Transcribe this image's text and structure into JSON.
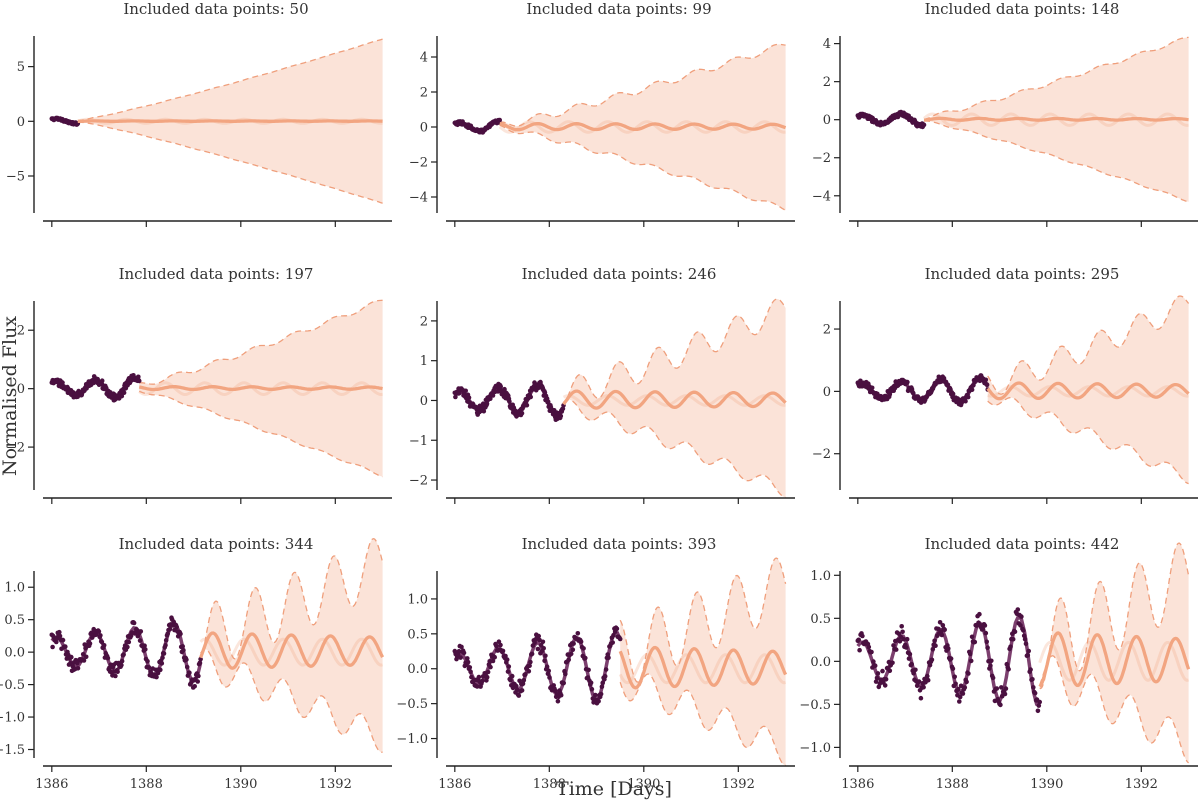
{
  "figure": {
    "xlabel": "Time [Days]",
    "ylabel": "Normalised Flux"
  },
  "colors": {
    "observed": "#4a1040",
    "observed_line": "#6e2a5e",
    "prediction": "#f2a581",
    "band_fill": "#fbe3d8",
    "band_edge": "#ef9f7c"
  },
  "chart_data": [
    {
      "type": "line",
      "title": "Included data points: 50",
      "n_points": 50,
      "x_range": [
        1386,
        1393
      ],
      "xlim": [
        1385.75,
        1393.2
      ],
      "xticks": [
        1386,
        1388,
        1390,
        1392
      ],
      "xticklabels_shown": false,
      "ylim": [
        -8.2,
        7.8
      ],
      "yticks": [
        -5,
        0,
        5
      ],
      "yticklabels": [
        "−5",
        "0",
        "5"
      ],
      "observed_end": 1386.55,
      "band_start": 0.05,
      "band_end": 7.5,
      "band_wiggle": 0.0,
      "mean_amp": 0.02,
      "faint_amp": 0.18,
      "series": [
        {
          "name": "observed data",
          "style": "points"
        },
        {
          "name": "mean prediction",
          "style": "line"
        },
        {
          "name": "sample prediction",
          "style": "faint line"
        },
        {
          "name": "uncertainty band",
          "style": "filled area"
        }
      ]
    },
    {
      "type": "line",
      "title": "Included data points: 99",
      "n_points": 99,
      "x_range": [
        1386,
        1393
      ],
      "xlim": [
        1385.75,
        1393.2
      ],
      "xticks": [
        1386,
        1388,
        1390,
        1392
      ],
      "xticklabels_shown": false,
      "ylim": [
        -4.8,
        5.2
      ],
      "yticks": [
        -4,
        -2,
        0,
        2,
        4
      ],
      "yticklabels": [
        "−4",
        "−2",
        "0",
        "2",
        "4"
      ],
      "observed_end": 1386.95,
      "band_start": 0.05,
      "band_end": 4.7,
      "band_wiggle": 0.05,
      "mean_amp": 0.18,
      "faint_amp": 0.3,
      "series": [
        {
          "name": "observed data",
          "style": "points"
        },
        {
          "name": "mean prediction",
          "style": "line"
        },
        {
          "name": "sample prediction",
          "style": "faint line"
        },
        {
          "name": "uncertainty band",
          "style": "filled area"
        }
      ]
    },
    {
      "type": "line",
      "title": "Included data points: 148",
      "n_points": 148,
      "x_range": [
        1386,
        1393
      ],
      "xlim": [
        1385.75,
        1393.2
      ],
      "xticks": [
        1386,
        1388,
        1390,
        1392
      ],
      "xticklabels_shown": false,
      "ylim": [
        -4.8,
        4.4
      ],
      "yticks": [
        -4,
        -2,
        0,
        2,
        4
      ],
      "yticklabels": [
        "−4",
        "−2",
        "0",
        "2",
        "4"
      ],
      "observed_end": 1387.4,
      "band_start": 0.1,
      "band_end": 4.3,
      "band_wiggle": 0.06,
      "mean_amp": 0.05,
      "faint_amp": 0.3,
      "series": [
        {
          "name": "observed data",
          "style": "points"
        },
        {
          "name": "mean prediction",
          "style": "line"
        },
        {
          "name": "sample prediction",
          "style": "faint line"
        },
        {
          "name": "uncertainty band",
          "style": "filled area"
        }
      ]
    },
    {
      "type": "line",
      "title": "Included data points: 197",
      "n_points": 197,
      "x_range": [
        1386,
        1393
      ],
      "xlim": [
        1385.75,
        1393.2
      ],
      "xticks": [
        1386,
        1388,
        1390,
        1392
      ],
      "xticklabels_shown": false,
      "ylim": [
        -3.4,
        3.0
      ],
      "yticks": [
        -2,
        0,
        2
      ],
      "yticklabels": [
        "−2",
        "0",
        "2"
      ],
      "observed_end": 1387.85,
      "band_start": 0.1,
      "band_end": 3.0,
      "band_wiggle": 0.05,
      "mean_amp": 0.05,
      "faint_amp": 0.2,
      "series": [
        {
          "name": "observed data",
          "style": "points"
        },
        {
          "name": "mean prediction",
          "style": "line"
        },
        {
          "name": "sample prediction",
          "style": "faint line"
        },
        {
          "name": "uncertainty band",
          "style": "filled area"
        }
      ]
    },
    {
      "type": "line",
      "title": "Included data points: 246",
      "n_points": 246,
      "x_range": [
        1386,
        1393
      ],
      "xlim": [
        1385.75,
        1393.2
      ],
      "xticks": [
        1386,
        1388,
        1390,
        1392
      ],
      "xticklabels_shown": false,
      "ylim": [
        -2.2,
        2.5
      ],
      "yticks": [
        -2,
        -1,
        0,
        1,
        2
      ],
      "yticklabels": [
        "−2",
        "−1",
        "0",
        "1",
        "2"
      ],
      "observed_end": 1388.3,
      "band_start": 0.15,
      "band_end": 2.3,
      "band_wiggle": 0.2,
      "mean_amp": 0.22,
      "faint_amp": 0.12,
      "series": [
        {
          "name": "observed data",
          "style": "points"
        },
        {
          "name": "mean prediction",
          "style": "line"
        },
        {
          "name": "sample prediction",
          "style": "faint line"
        },
        {
          "name": "uncertainty band",
          "style": "filled area"
        }
      ]
    },
    {
      "type": "line",
      "title": "Included data points: 295",
      "n_points": 295,
      "x_range": [
        1386,
        1393
      ],
      "xlim": [
        1385.75,
        1393.2
      ],
      "xticks": [
        1386,
        1388,
        1390,
        1392
      ],
      "xticklabels_shown": false,
      "ylim": [
        -3.1,
        2.9
      ],
      "yticks": [
        -2,
        0,
        2
      ],
      "yticklabels": [
        "−2",
        "0",
        "2"
      ],
      "observed_end": 1388.75,
      "band_start": 0.2,
      "band_end": 2.8,
      "band_wiggle": 0.22,
      "mean_amp": 0.26,
      "faint_amp": 0.15,
      "series": [
        {
          "name": "observed data",
          "style": "points"
        },
        {
          "name": "mean prediction",
          "style": "line"
        },
        {
          "name": "sample prediction",
          "style": "faint line"
        },
        {
          "name": "uncertainty band",
          "style": "filled area"
        }
      ]
    },
    {
      "type": "line",
      "title": "Included data points: 344",
      "n_points": 344,
      "x_range": [
        1386,
        1393
      ],
      "xlim": [
        1385.75,
        1393.2
      ],
      "xticks": [
        1386,
        1388,
        1390,
        1392
      ],
      "xticklabels": [
        "1386",
        "1388",
        "1390",
        "1392"
      ],
      "xticklabels_shown": true,
      "ylim": [
        -1.6,
        1.25
      ],
      "yticks": [
        -1.5,
        -1.0,
        -0.5,
        0.0,
        0.5,
        1.0
      ],
      "yticklabels": [
        "−1.5",
        "−1.0",
        "−0.5",
        "0.0",
        "0.5",
        "1.0"
      ],
      "observed_end": 1389.15,
      "band_start": 0.2,
      "band_end": 1.35,
      "band_wiggle": 0.28,
      "mean_amp": 0.28,
      "faint_amp": 0.2,
      "series": [
        {
          "name": "observed data",
          "style": "points"
        },
        {
          "name": "mean prediction",
          "style": "line"
        },
        {
          "name": "sample prediction",
          "style": "faint line"
        },
        {
          "name": "uncertainty band",
          "style": "filled area"
        }
      ]
    },
    {
      "type": "line",
      "title": "Included data points: 393",
      "n_points": 393,
      "x_range": [
        1386,
        1393
      ],
      "xlim": [
        1385.75,
        1393.2
      ],
      "xticks": [
        1386,
        1388,
        1390,
        1392
      ],
      "xticklabels": [
        "1386",
        "1388",
        "1390",
        "1392"
      ],
      "xticklabels_shown": true,
      "ylim": [
        -1.25,
        1.4
      ],
      "yticks": [
        -1.0,
        -0.5,
        0.0,
        0.5,
        1.0
      ],
      "yticklabels": [
        "−1.0",
        "−0.5",
        "0.0",
        "0.5",
        "1.0"
      ],
      "observed_end": 1389.5,
      "band_start": 0.2,
      "band_end": 1.2,
      "band_wiggle": 0.25,
      "mean_amp": 0.3,
      "faint_amp": 0.2,
      "series": [
        {
          "name": "observed data",
          "style": "points"
        },
        {
          "name": "mean prediction",
          "style": "line"
        },
        {
          "name": "sample prediction",
          "style": "faint line"
        },
        {
          "name": "uncertainty band",
          "style": "filled area"
        }
      ]
    },
    {
      "type": "line",
      "title": "Included data points: 442",
      "n_points": 442,
      "x_range": [
        1386,
        1393
      ],
      "xlim": [
        1385.75,
        1393.2
      ],
      "xticks": [
        1386,
        1388,
        1390,
        1392
      ],
      "xticklabels": [
        "1386",
        "1388",
        "1390",
        "1392"
      ],
      "xticklabels_shown": true,
      "ylim": [
        -1.1,
        1.05
      ],
      "yticks": [
        -1.0,
        -0.5,
        0.0,
        0.5,
        1.0
      ],
      "yticklabels": [
        "−1.0",
        "−0.5",
        "0.0",
        "0.5",
        "1.0"
      ],
      "observed_end": 1389.85,
      "band_start": 0.15,
      "band_end": 1.0,
      "band_wiggle": 0.22,
      "mean_amp": 0.32,
      "faint_amp": 0.22,
      "series": [
        {
          "name": "observed data",
          "style": "points"
        },
        {
          "name": "mean prediction",
          "style": "line"
        },
        {
          "name": "sample prediction",
          "style": "faint line"
        },
        {
          "name": "uncertainty band",
          "style": "filled area"
        }
      ]
    }
  ]
}
